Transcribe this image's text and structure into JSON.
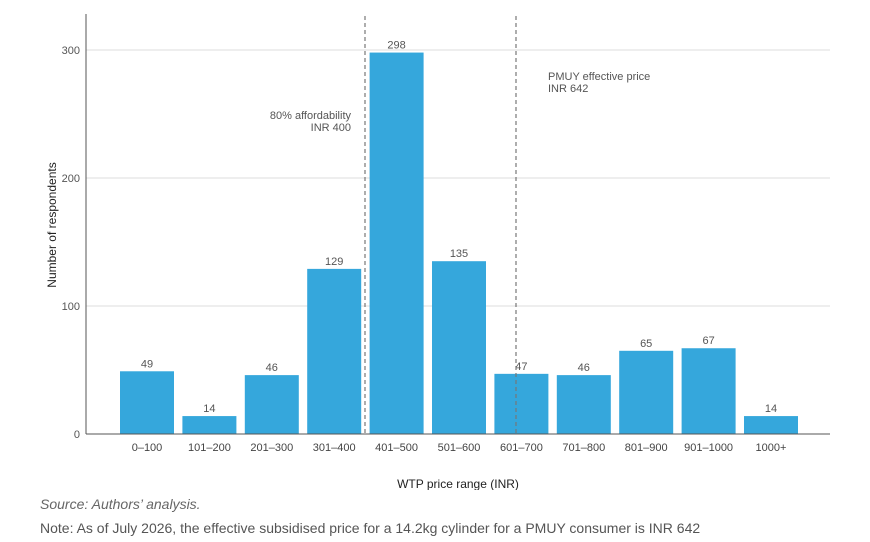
{
  "chart_data": {
    "type": "bar",
    "categories": [
      "0–100",
      "101–200",
      "201–300",
      "301–400",
      "401–500",
      "501–600",
      "601–700",
      "701–800",
      "801–900",
      "901–1000",
      "1000+"
    ],
    "values": [
      49,
      14,
      46,
      129,
      298,
      135,
      47,
      46,
      65,
      67,
      14
    ],
    "xlabel": "WTP price range (INR)",
    "ylabel": "Number of respondents",
    "yticks": [
      0,
      100,
      200,
      300
    ],
    "ylim": [
      0,
      300
    ],
    "grid": true,
    "bar_color": "#35a7dc",
    "annotations": [
      {
        "lines": [
          "80% affordability",
          "INR 400"
        ],
        "x_value": 400
      },
      {
        "lines": [
          "PMUY effective price",
          "INR 642"
        ],
        "x_value": 642
      }
    ]
  },
  "footer": {
    "source": "Source: Authors’ analysis.",
    "note": "Note: As of July 2026, the effective subsidised price for a 14.2kg cylinder for a PMUY consumer is INR 642"
  }
}
